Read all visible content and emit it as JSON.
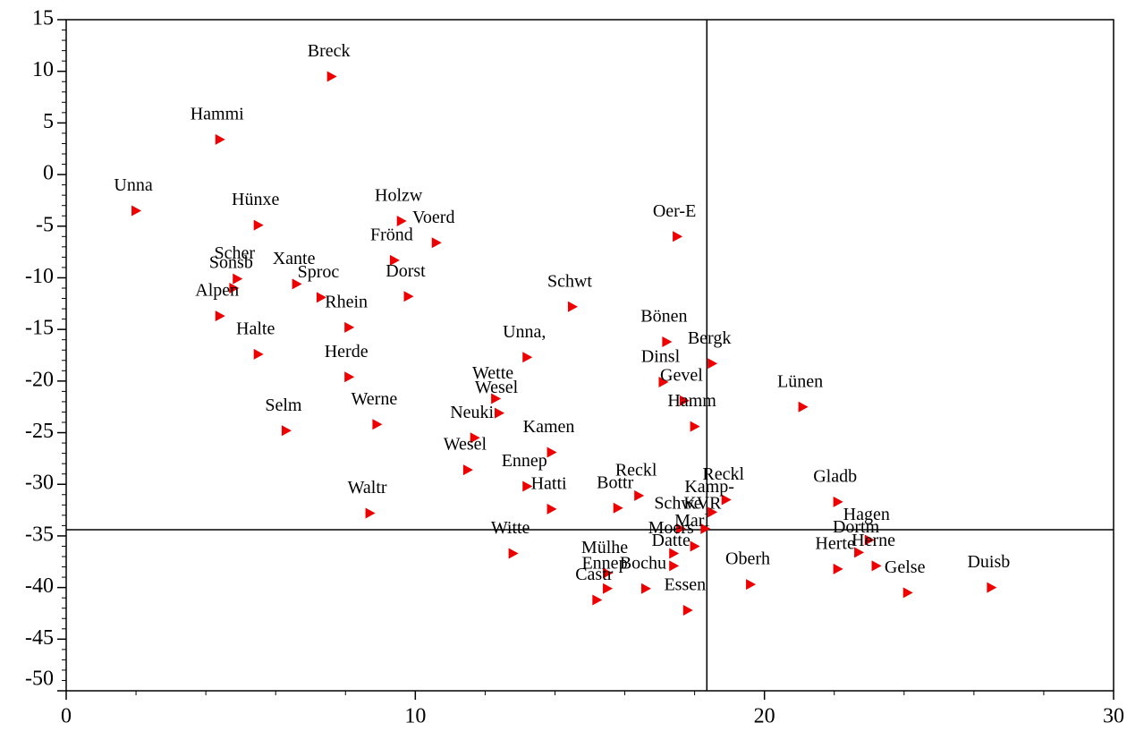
{
  "chart_data": {
    "type": "scatter",
    "labels": [
      "Breck",
      "Hammi",
      "Unna",
      "Hünxe",
      "Holzw",
      "Voerd",
      "Frönd",
      "Scher",
      "Sonsb",
      "Xante",
      "Sproc",
      "Dorst",
      "Alpen",
      "Rhein",
      "Halte",
      "Herde",
      "Werne",
      "Selm",
      "Waltr",
      "Schwt",
      "Unna,",
      "Wette",
      "Wesel",
      "Neuki",
      "Kamen",
      "Wesel",
      "Ennep",
      "Hatti",
      "Witte",
      "Reckl",
      "Bottr",
      "Mülhe",
      "Ennep",
      "Castr",
      "Bochu",
      "Essen",
      "Oer-E",
      "Bönen",
      "Dinsl",
      "Gevel",
      "Hamm",
      "Bergk",
      "Lünen",
      "Reckl",
      "Kamp-",
      "Schwe",
      "KVR",
      "Marl",
      "Moers",
      "Datte",
      "Oberh",
      "Gladb",
      "Hagen",
      "Dortm",
      "Herte",
      "Herne",
      "Gelse",
      "Duisb"
    ],
    "x": [
      7.6,
      4.4,
      2.0,
      5.5,
      9.6,
      10.6,
      9.4,
      4.9,
      4.8,
      6.6,
      7.3,
      9.8,
      4.4,
      8.1,
      5.5,
      8.1,
      8.9,
      6.3,
      8.7,
      14.5,
      13.2,
      12.3,
      12.4,
      11.7,
      13.9,
      11.5,
      13.2,
      13.9,
      12.8,
      16.4,
      15.8,
      15.5,
      15.5,
      15.2,
      16.6,
      17.8,
      17.5,
      17.2,
      17.1,
      17.7,
      18.0,
      18.5,
      21.1,
      18.9,
      18.5,
      17.6,
      18.3,
      18.0,
      17.4,
      17.4,
      19.6,
      22.1,
      23.0,
      22.7,
      22.1,
      23.2,
      24.1,
      26.5
    ],
    "y": [
      9.5,
      3.4,
      -3.5,
      -4.9,
      -4.5,
      -6.6,
      -8.3,
      -10.1,
      -11.0,
      -10.6,
      -11.9,
      -11.8,
      -13.7,
      -14.8,
      -17.4,
      -19.6,
      -24.2,
      -24.8,
      -32.8,
      -12.8,
      -17.7,
      -21.7,
      -23.1,
      -25.5,
      -26.9,
      -28.6,
      -30.2,
      -32.4,
      -36.7,
      -31.1,
      -32.3,
      -38.6,
      -40.1,
      -41.2,
      -40.1,
      -42.2,
      -6.0,
      -16.2,
      -20.1,
      -21.9,
      -24.4,
      -18.3,
      -22.5,
      -31.5,
      -32.7,
      -34.3,
      -34.3,
      -36.0,
      -36.7,
      -37.9,
      -39.7,
      -31.7,
      -35.4,
      -36.6,
      -38.2,
      -37.9,
      -40.5,
      -40.0
    ],
    "color": "#ee0000",
    "xlim": [
      0,
      30
    ],
    "xticks": [
      0,
      10,
      20,
      30
    ],
    "ylim": [
      -50,
      15
    ],
    "yticks": [
      15,
      10,
      5,
      0,
      -5,
      -10,
      -15,
      -20,
      -25,
      -30,
      -35,
      -40,
      -45,
      -50
    ],
    "reference_lines": {
      "x": 18.35,
      "y": -34.4
    }
  }
}
